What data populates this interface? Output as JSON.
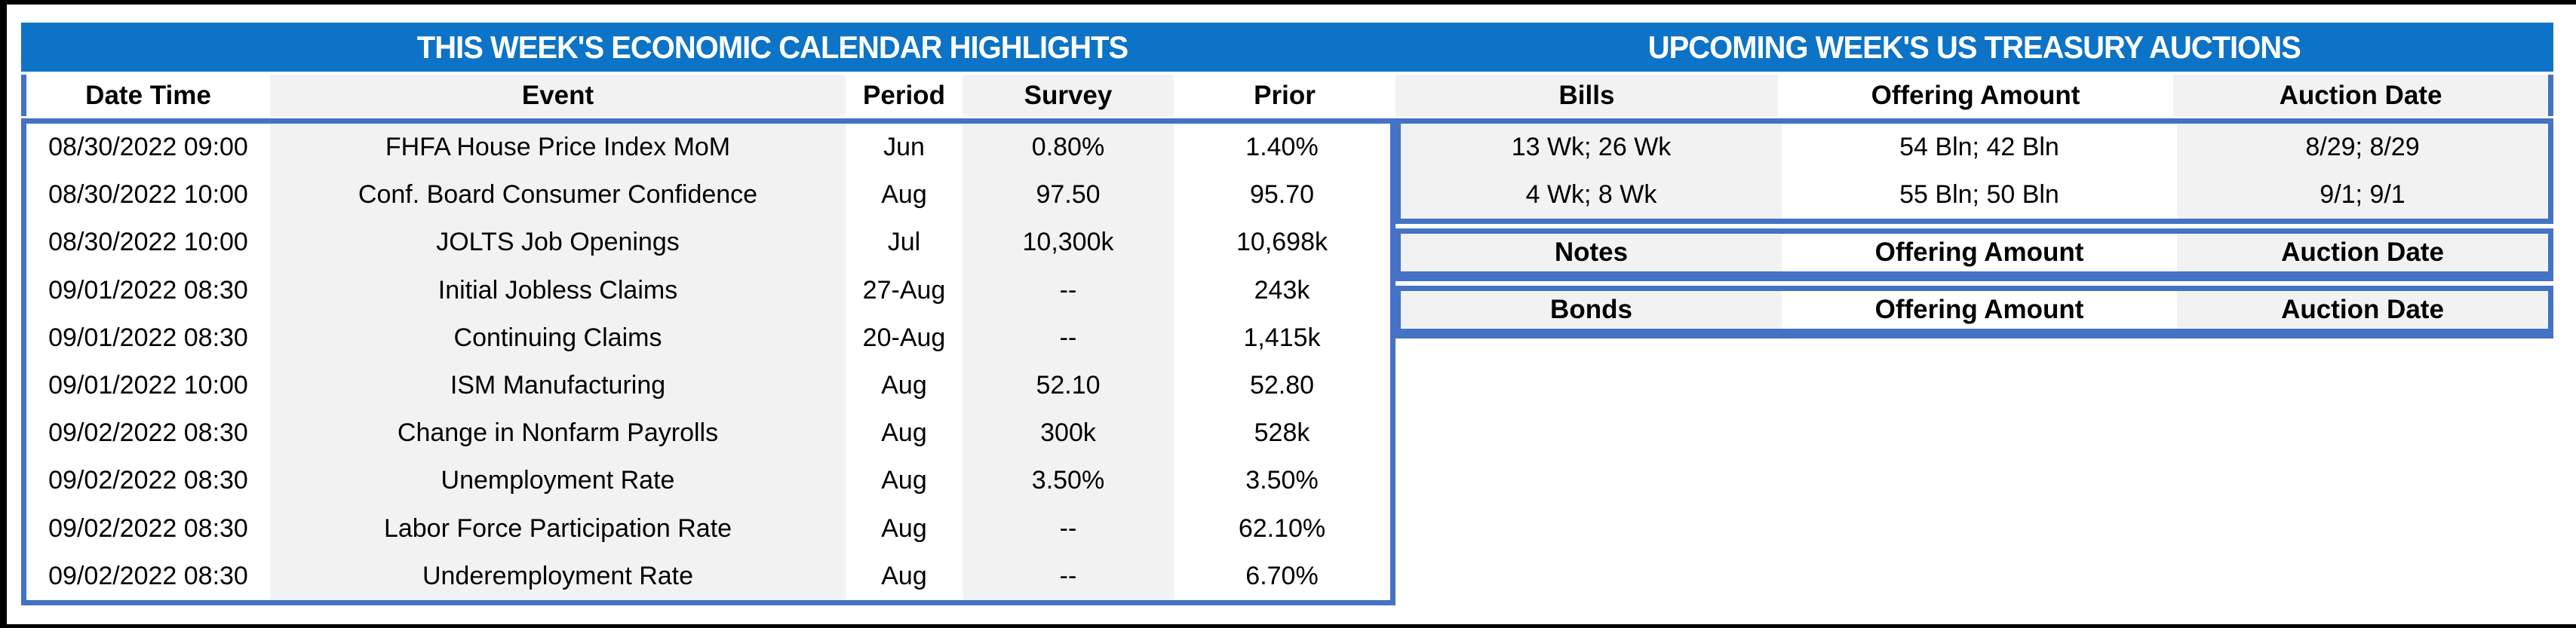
{
  "colors": {
    "band_blue": "#0c73c6",
    "border_blue": "#4472c4",
    "stripe_gray": "#f2f2f2",
    "white": "#ffffff",
    "frame_black": "#000000",
    "text_black": "#000000",
    "title_text": "#ffffff"
  },
  "calendar": {
    "title": "THIS WEEK'S ECONOMIC CALENDAR HIGHLIGHTS",
    "columns": [
      "Date Time",
      "Event",
      "Period",
      "Survey",
      "Prior"
    ],
    "rows": [
      [
        "08/30/2022 09:00",
        "FHFA House Price Index MoM",
        "Jun",
        "0.80%",
        "1.40%"
      ],
      [
        "08/30/2022 10:00",
        "Conf. Board Consumer Confidence",
        "Aug",
        "97.50",
        "95.70"
      ],
      [
        "08/30/2022 10:00",
        "JOLTS Job Openings",
        "Jul",
        "10,300k",
        "10,698k"
      ],
      [
        "09/01/2022 08:30",
        "Initial Jobless Claims",
        "27-Aug",
        "--",
        "243k"
      ],
      [
        "09/01/2022 08:30",
        "Continuing Claims",
        "20-Aug",
        "--",
        "1,415k"
      ],
      [
        "09/01/2022 10:00",
        "ISM Manufacturing",
        "Aug",
        "52.10",
        "52.80"
      ],
      [
        "09/02/2022 08:30",
        "Change in Nonfarm Payrolls",
        "Aug",
        "300k",
        "528k"
      ],
      [
        "09/02/2022 08:30",
        "Unemployment Rate",
        "Aug",
        "3.50%",
        "3.50%"
      ],
      [
        "09/02/2022 08:30",
        "Labor Force Participation Rate",
        "Aug",
        "--",
        "62.10%"
      ],
      [
        "09/02/2022 08:30",
        "Underemployment Rate",
        "Aug",
        "--",
        "6.70%"
      ]
    ]
  },
  "auctions": {
    "title": "UPCOMING WEEK'S US TREASURY AUCTIONS",
    "sections": [
      {
        "name": "bills",
        "columns": [
          "Bills",
          "Offering Amount",
          "Auction Date"
        ],
        "rows": [
          [
            "13 Wk; 26 Wk",
            "54 Bln; 42 Bln",
            "8/29; 8/29"
          ],
          [
            "4 Wk; 8 Wk",
            "55 Bln; 50 Bln",
            "9/1; 9/1"
          ]
        ]
      },
      {
        "name": "notes",
        "columns": [
          "Notes",
          "Offering Amount",
          "Auction Date"
        ],
        "rows": []
      },
      {
        "name": "bonds",
        "columns": [
          "Bonds",
          "Offering Amount",
          "Auction Date"
        ],
        "rows": []
      }
    ]
  }
}
